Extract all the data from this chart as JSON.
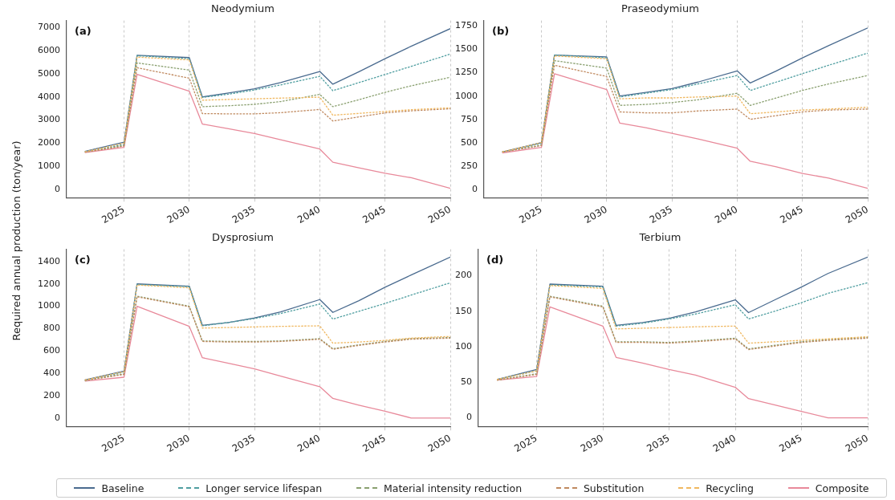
{
  "chart_data": [
    {
      "type": "line",
      "title": "Neodymium",
      "ylabel": "Required annual production (ton/year)",
      "annotations": [
        "(a)"
      ],
      "grid": "x",
      "legend": "bottom",
      "marker": "none",
      "x": [
        2022,
        2025,
        2026,
        2030,
        2031,
        2033,
        2035,
        2037,
        2040,
        2041,
        2043,
        2045,
        2047,
        2050
      ],
      "xlim": [
        2020.6,
        2050
      ],
      "xticks": [
        2025,
        2030,
        2035,
        2040,
        2045,
        2050
      ],
      "ylim": [
        -350,
        7300
      ],
      "yticks": [
        0,
        1000,
        2000,
        3000,
        4000,
        5000,
        6000,
        7000
      ],
      "series": [
        {
          "name": "Baseline",
          "color": "#4a6b8f",
          "line_style": "solid",
          "values": [
            1650,
            2050,
            5800,
            5700,
            4000,
            4170,
            4350,
            4620,
            5100,
            4550,
            5090,
            5650,
            6190,
            6950
          ]
        },
        {
          "name": "Longer service lifespan",
          "color": "#4f9ea0",
          "line_style": "dashed",
          "values": [
            1630,
            1950,
            5780,
            5650,
            3980,
            4120,
            4300,
            4520,
            4890,
            4270,
            4620,
            4970,
            5320,
            5850
          ]
        },
        {
          "name": "Material intensity reduction",
          "color": "#8aa070",
          "line_style": "dashed",
          "values": [
            1620,
            1900,
            5470,
            5160,
            3580,
            3620,
            3680,
            3800,
            4110,
            3580,
            3880,
            4200,
            4480,
            4850
          ]
        },
        {
          "name": "Substitution",
          "color": "#c08a60",
          "line_style": "dashed",
          "values": [
            1610,
            1880,
            5260,
            4810,
            3280,
            3270,
            3270,
            3320,
            3460,
            2960,
            3140,
            3310,
            3400,
            3490
          ]
        },
        {
          "name": "Recycling",
          "color": "#f0b860",
          "line_style": "dashed",
          "values": [
            1630,
            2000,
            5720,
            5600,
            3860,
            3890,
            3920,
            3950,
            3990,
            3210,
            3290,
            3370,
            3450,
            3530
          ]
        },
        {
          "name": "Composite",
          "color": "#e8899a",
          "line_style": "solid",
          "values": [
            1600,
            1820,
            4980,
            4250,
            2830,
            2630,
            2420,
            2150,
            1750,
            1180,
            940,
            700,
            510,
            50
          ]
        }
      ]
    },
    {
      "type": "line",
      "title": "Praseodymium",
      "annotations": [
        "(b)"
      ],
      "grid": "x",
      "marker": "none",
      "x": [
        2022,
        2025,
        2026,
        2030,
        2031,
        2033,
        2035,
        2037,
        2040,
        2041,
        2043,
        2045,
        2047,
        2050
      ],
      "xlim": [
        2020.6,
        2050
      ],
      "xticks": [
        2025,
        2030,
        2035,
        2040,
        2045,
        2050
      ],
      "ylim": [
        -90,
        1810
      ],
      "yticks": [
        0,
        250,
        500,
        750,
        1000,
        1250,
        1500,
        1750
      ],
      "series": [
        {
          "color": "#4a6b8f",
          "line_style": "solid",
          "values": [
            400,
            500,
            1440,
            1420,
            1000,
            1040,
            1080,
            1150,
            1270,
            1140,
            1270,
            1410,
            1540,
            1730
          ]
        },
        {
          "color": "#4f9ea0",
          "line_style": "dashed",
          "values": [
            400,
            490,
            1440,
            1410,
            990,
            1030,
            1070,
            1130,
            1220,
            1060,
            1150,
            1240,
            1330,
            1460
          ]
        },
        {
          "color": "#8aa070",
          "line_style": "dashed",
          "values": [
            400,
            470,
            1380,
            1300,
            900,
            910,
            930,
            960,
            1030,
            900,
            980,
            1060,
            1130,
            1220
          ]
        },
        {
          "color": "#c08a60",
          "line_style": "dashed",
          "values": [
            400,
            470,
            1330,
            1210,
            830,
            820,
            820,
            840,
            860,
            750,
            790,
            830,
            850,
            860
          ]
        },
        {
          "color": "#f0b860",
          "line_style": "dashed",
          "values": [
            400,
            500,
            1430,
            1400,
            970,
            980,
            980,
            990,
            1000,
            810,
            830,
            850,
            860,
            880
          ]
        },
        {
          "color": "#e8899a",
          "line_style": "solid",
          "values": [
            390,
            450,
            1240,
            1070,
            710,
            660,
            600,
            540,
            440,
            300,
            240,
            170,
            120,
            10
          ]
        }
      ]
    },
    {
      "type": "line",
      "title": "Dysprosium",
      "annotations": [
        "(c)"
      ],
      "grid": "x",
      "marker": "none",
      "x": [
        2022,
        2025,
        2026,
        2030,
        2031,
        2033,
        2035,
        2037,
        2040,
        2041,
        2043,
        2045,
        2047,
        2050
      ],
      "xlim": [
        2020.6,
        2050
      ],
      "xticks": [
        2025,
        2030,
        2035,
        2040,
        2045,
        2050
      ],
      "ylim": [
        -75,
        1510
      ],
      "yticks": [
        0,
        200,
        400,
        600,
        800,
        1000,
        1200,
        1400
      ],
      "series": [
        {
          "color": "#4a6b8f",
          "line_style": "solid",
          "values": [
            340,
            420,
            1200,
            1180,
            830,
            855,
            895,
            950,
            1060,
            945,
            1050,
            1170,
            1280,
            1440
          ]
        },
        {
          "color": "#4f9ea0",
          "line_style": "dashed",
          "values": [
            335,
            410,
            1195,
            1175,
            825,
            855,
            890,
            935,
            1020,
            885,
            955,
            1025,
            1100,
            1210
          ]
        },
        {
          "color": "#8aa070",
          "line_style": "dashed",
          "values": [
            335,
            395,
            1090,
            1000,
            690,
            685,
            685,
            690,
            710,
            620,
            655,
            685,
            710,
            720
          ]
        },
        {
          "color": "#c08a60",
          "line_style": "dashed",
          "values": [
            335,
            390,
            1085,
            995,
            685,
            680,
            680,
            685,
            705,
            615,
            650,
            680,
            705,
            715
          ]
        },
        {
          "color": "#f0b860",
          "line_style": "dashed",
          "values": [
            340,
            415,
            1190,
            1165,
            805,
            810,
            815,
            820,
            825,
            670,
            680,
            695,
            715,
            730
          ]
        },
        {
          "color": "#e8899a",
          "line_style": "solid",
          "values": [
            330,
            365,
            1000,
            820,
            540,
            490,
            440,
            375,
            280,
            175,
            115,
            60,
            0,
            0
          ]
        }
      ]
    },
    {
      "type": "line",
      "title": "Terbium",
      "annotations": [
        "(d)"
      ],
      "grid": "x",
      "marker": "none",
      "x": [
        2022,
        2025,
        2026,
        2030,
        2031,
        2033,
        2035,
        2037,
        2040,
        2041,
        2043,
        2045,
        2047,
        2050
      ],
      "xlim": [
        2020.6,
        2050
      ],
      "xticks": [
        2025,
        2030,
        2035,
        2040,
        2045,
        2050
      ],
      "ylim": [
        -12,
        237
      ],
      "yticks": [
        0,
        50,
        100,
        150,
        200
      ],
      "series": [
        {
          "color": "#4a6b8f",
          "line_style": "solid",
          "values": [
            54,
            68,
            188,
            185,
            130,
            134,
            140,
            149,
            166,
            148,
            166,
            184,
            203,
            226
          ]
        },
        {
          "color": "#4f9ea0",
          "line_style": "dashed",
          "values": [
            54,
            66,
            187,
            184,
            129,
            133,
            139,
            146,
            159,
            139,
            150,
            162,
            175,
            190
          ]
        },
        {
          "color": "#8aa070",
          "line_style": "dashed",
          "values": [
            53,
            62,
            171,
            157,
            107,
            107,
            106,
            108,
            112,
            97,
            102,
            107,
            110,
            113
          ]
        },
        {
          "color": "#c08a60",
          "line_style": "dashed",
          "values": [
            53,
            61,
            170,
            156,
            106,
            106,
            105,
            107,
            111,
            96,
            101,
            106,
            109,
            112
          ]
        },
        {
          "color": "#f0b860",
          "line_style": "dashed",
          "values": [
            54,
            66,
            186,
            182,
            125,
            126,
            127,
            128,
            129,
            105,
            107,
            109,
            111,
            114
          ]
        },
        {
          "color": "#e8899a",
          "line_style": "solid",
          "values": [
            53,
            58,
            156,
            129,
            85,
            77,
            68,
            60,
            43,
            27,
            18,
            9,
            0,
            0
          ]
        }
      ]
    }
  ]
}
